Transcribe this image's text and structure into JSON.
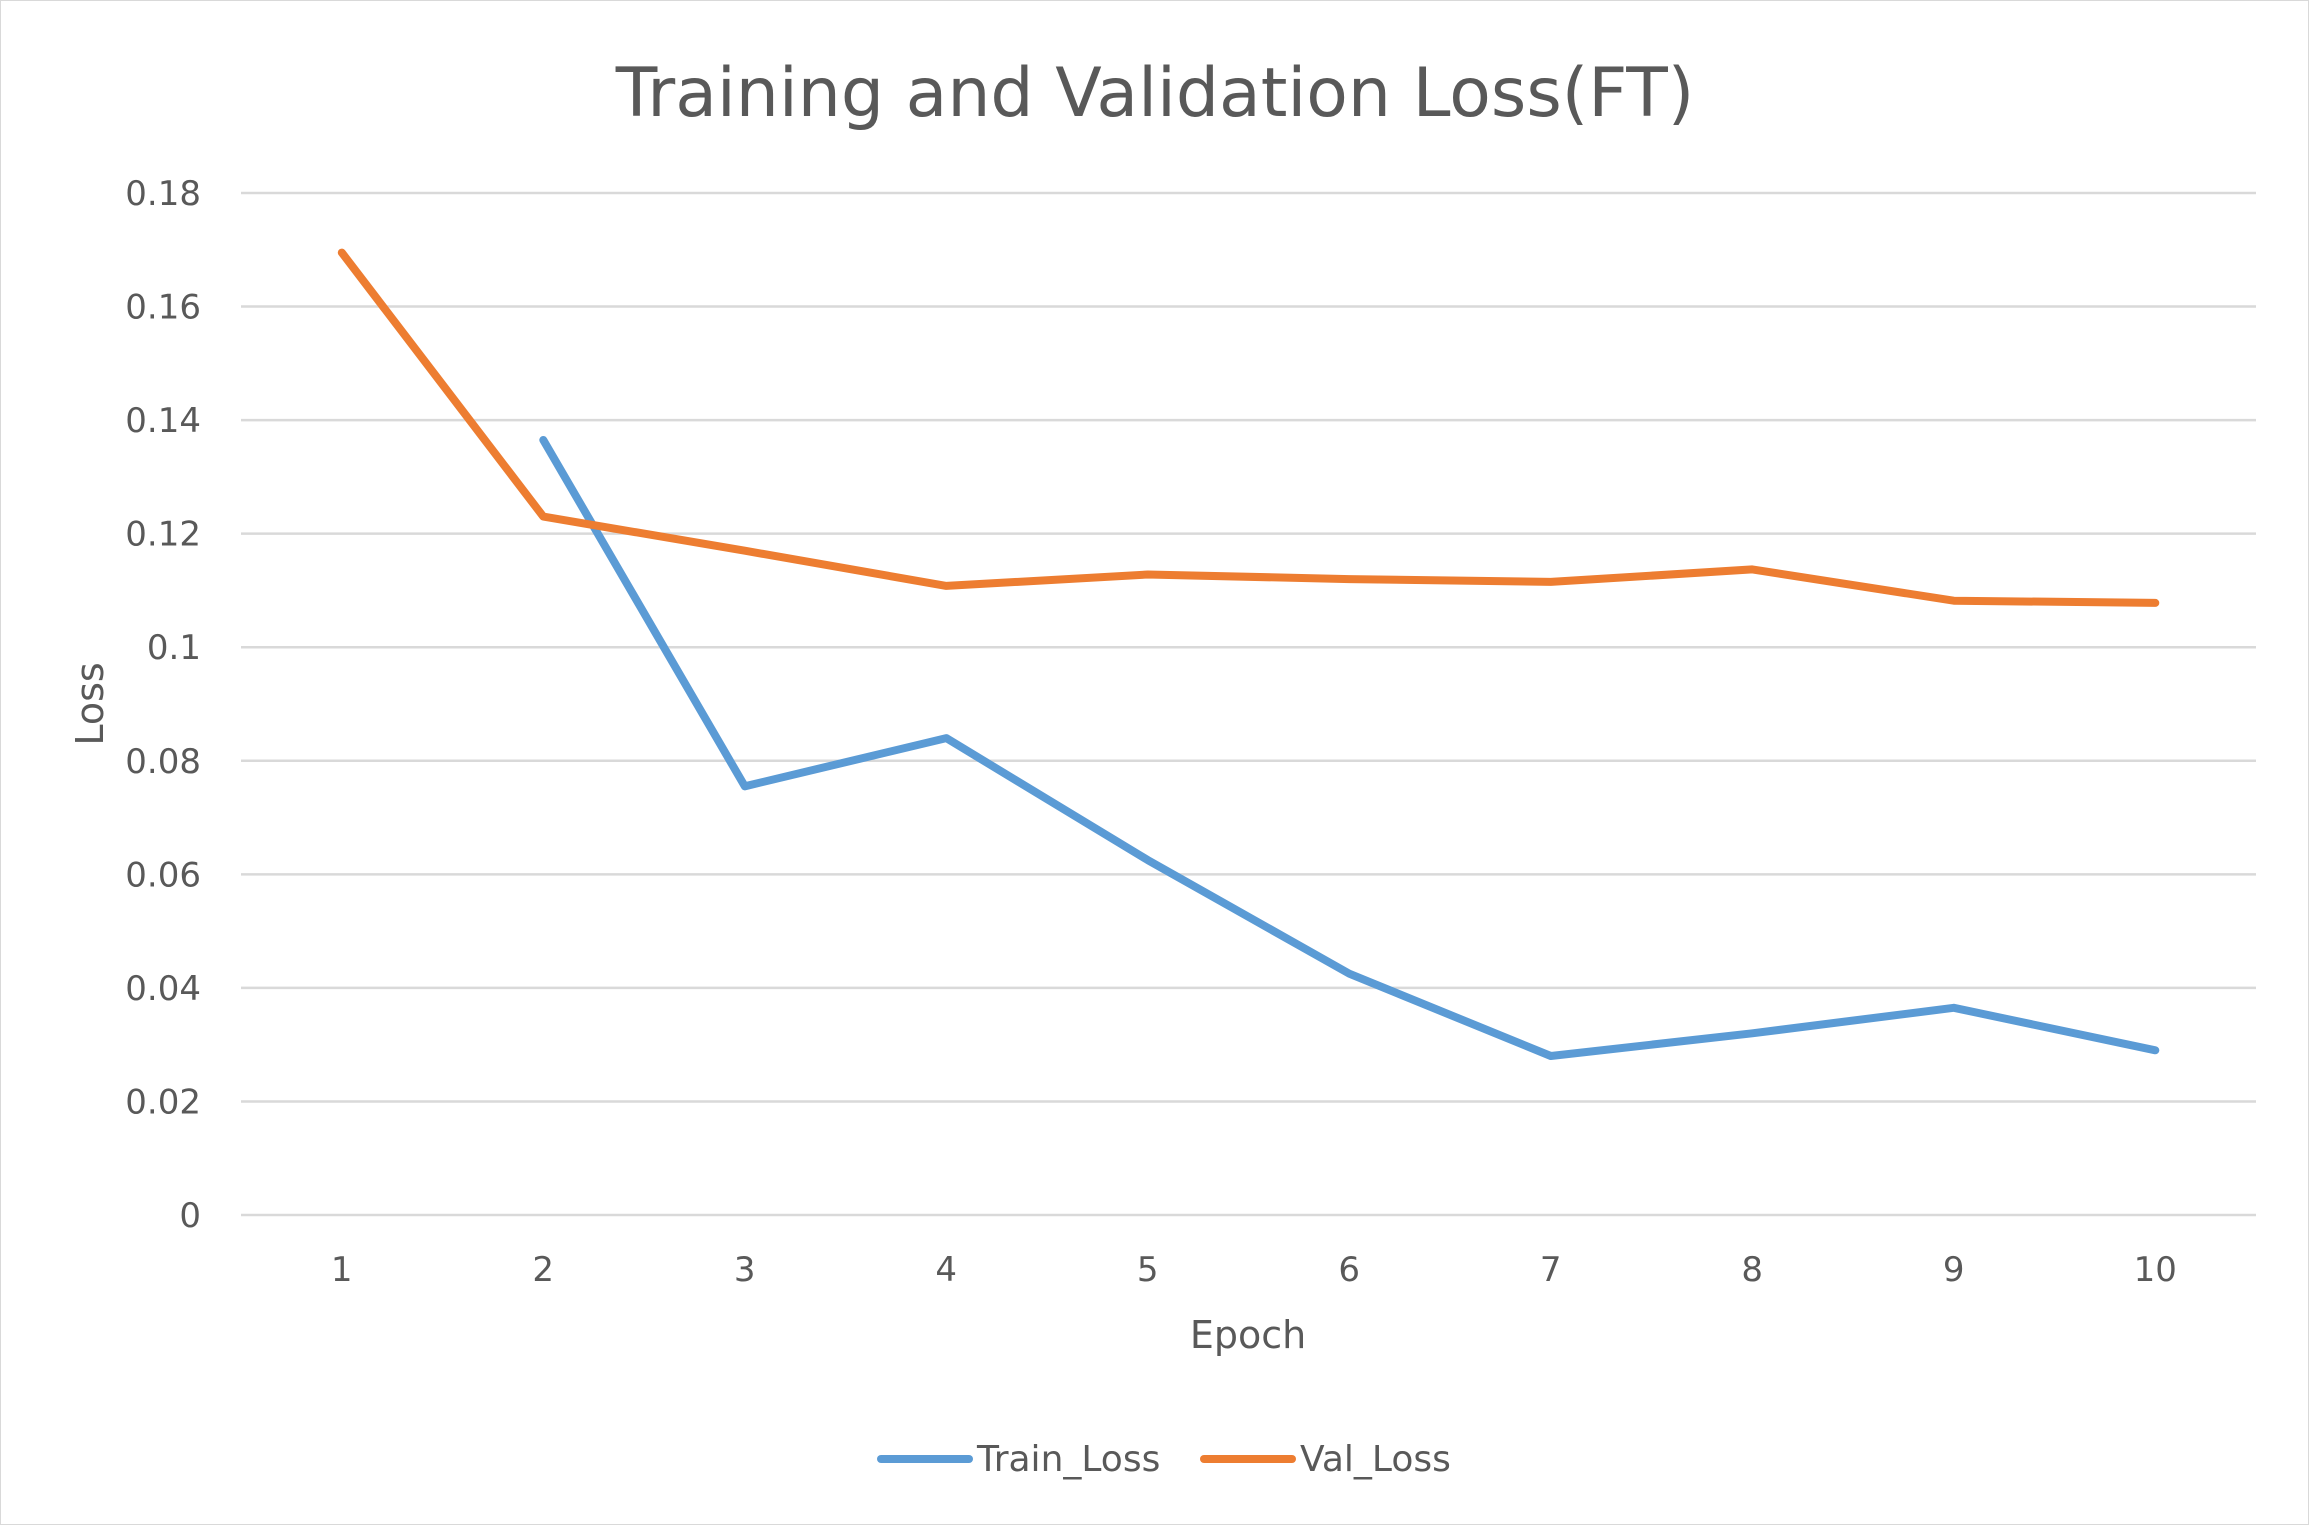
{
  "chart_data": {
    "type": "line",
    "title": "Training and Validation Loss(FT)",
    "xlabel": "Epoch",
    "ylabel": "Loss",
    "categories": [
      "1",
      "2",
      "3",
      "4",
      "5",
      "6",
      "7",
      "8",
      "9",
      "10"
    ],
    "ylim": [
      0,
      0.18
    ],
    "yticks": [
      "0",
      "0.02",
      "0.04",
      "0.06",
      "0.08",
      "0.1",
      "0.12",
      "0.14",
      "0.16",
      "0.18"
    ],
    "grid": true,
    "legend_position": "bottom",
    "series": [
      {
        "name": "Train_Loss",
        "color": "#5B9BD5",
        "values": [
          null,
          0.1365,
          0.0755,
          0.084,
          0.0625,
          0.0425,
          0.028,
          0.032,
          0.0365,
          0.029
        ]
      },
      {
        "name": "Val_Loss",
        "color": "#ED7D31",
        "values": [
          0.1695,
          0.123,
          0.117,
          0.1108,
          0.1128,
          0.112,
          0.1115,
          0.1137,
          0.1082,
          0.1078
        ]
      }
    ]
  }
}
